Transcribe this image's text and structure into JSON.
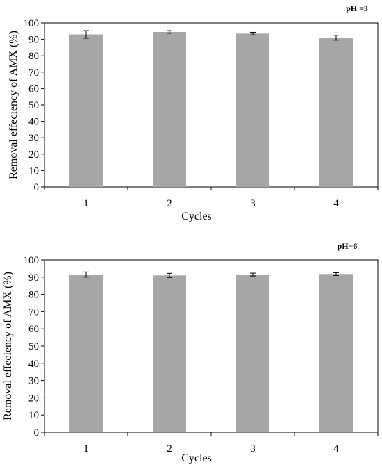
{
  "chart_data": [
    {
      "type": "bar",
      "annotation": "pH =3",
      "xlabel": "Cycles",
      "ylabel": "Removal effeciency  of AMX (%)",
      "categories": [
        "1",
        "2",
        "3",
        "4"
      ],
      "values": [
        93,
        94.5,
        93.5,
        91
      ],
      "errors": [
        2.3,
        0.8,
        0.8,
        1.5
      ],
      "ylim": [
        0,
        100
      ],
      "yticks": [
        0,
        10,
        20,
        30,
        40,
        50,
        60,
        70,
        80,
        90,
        100
      ],
      "grid": false,
      "bar_color": "#a6a6a6"
    },
    {
      "type": "bar",
      "annotation": "pH=6",
      "xlabel": "Cycles",
      "ylabel": "Removal effeciency of AMX (%)",
      "categories": [
        "1",
        "2",
        "3",
        "4"
      ],
      "values": [
        91.5,
        91,
        91.5,
        91.8
      ],
      "errors": [
        1.5,
        1.2,
        0.8,
        0.8
      ],
      "ylim": [
        0,
        100
      ],
      "yticks": [
        0,
        10,
        20,
        30,
        40,
        50,
        60,
        70,
        80,
        90,
        100
      ],
      "grid": false,
      "bar_color": "#a6a6a6"
    }
  ]
}
